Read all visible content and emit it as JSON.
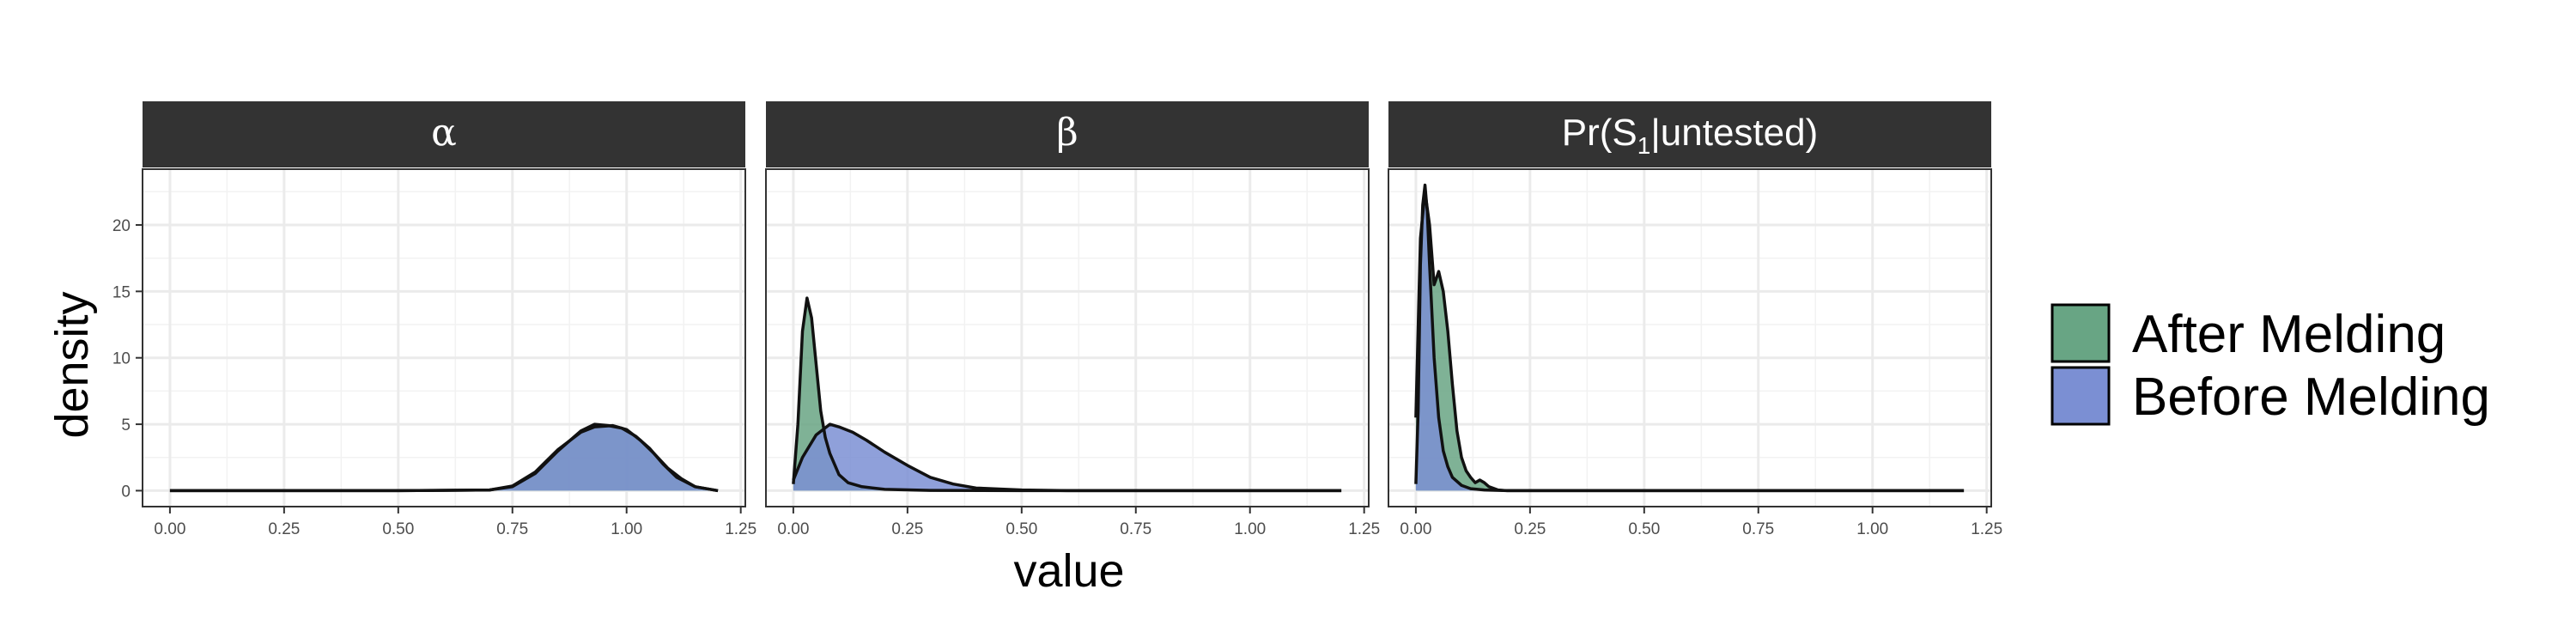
{
  "chart_data": {
    "type": "area",
    "xlabel": "value",
    "ylabel": "density",
    "xlim": [
      -0.06,
      1.26
    ],
    "ylim": [
      -1.2,
      24.2
    ],
    "x_ticks": [
      0,
      0.25,
      0.5,
      0.75,
      1.0,
      1.25
    ],
    "x_tick_labels": [
      "0.00",
      "0.25",
      "0.50",
      "0.75",
      "1.00",
      "1.25"
    ],
    "y_ticks": [
      0,
      5,
      10,
      15,
      20
    ],
    "y_tick_labels": [
      "0",
      "5",
      "10",
      "15",
      "20"
    ],
    "grid": true,
    "legend_position": "right",
    "legend": [
      {
        "label": "After Melding",
        "color": "#68a584"
      },
      {
        "label": "Before Melding",
        "color": "#7b8fd3"
      }
    ],
    "panels": [
      {
        "strip": "α",
        "series": [
          {
            "name": "After Melding",
            "color": "#68a584",
            "x": [
              0,
              0.5,
              0.7,
              0.75,
              0.8,
              0.85,
              0.9,
              0.93,
              0.96,
              0.99,
              1.02,
              1.05,
              1.08,
              1.11,
              1.15,
              1.2
            ],
            "y": [
              0,
              0,
              0.05,
              0.3,
              1.3,
              3.0,
              4.5,
              5.0,
              4.9,
              4.7,
              4.1,
              3.2,
              2.0,
              1.0,
              0.3,
              0
            ]
          },
          {
            "name": "Before Melding",
            "color": "#7b8fd3",
            "x": [
              0,
              0.5,
              0.7,
              0.75,
              0.8,
              0.85,
              0.9,
              0.93,
              0.97,
              1.0,
              1.03,
              1.06,
              1.09,
              1.12,
              1.15,
              1.2
            ],
            "y": [
              0,
              0,
              0.05,
              0.35,
              1.4,
              3.1,
              4.4,
              4.8,
              4.9,
              4.6,
              3.8,
              2.8,
              1.7,
              0.9,
              0.3,
              0
            ]
          }
        ]
      },
      {
        "strip": "β",
        "series": [
          {
            "name": "After Melding",
            "color": "#68a584",
            "x": [
              0,
              0.01,
              0.02,
              0.03,
              0.04,
              0.05,
              0.06,
              0.07,
              0.08,
              0.09,
              0.1,
              0.12,
              0.15,
              0.2,
              0.3,
              0.5,
              1.2
            ],
            "y": [
              0.5,
              5.0,
              12.0,
              14.5,
              13.0,
              9.5,
              6.0,
              4.0,
              2.8,
              2.0,
              1.2,
              0.6,
              0.3,
              0.1,
              0.02,
              0,
              0
            ]
          },
          {
            "name": "Before Melding",
            "color": "#7b8fd3",
            "x": [
              0,
              0.02,
              0.05,
              0.08,
              0.1,
              0.13,
              0.16,
              0.2,
              0.25,
              0.3,
              0.35,
              0.4,
              0.5,
              0.6,
              1.2
            ],
            "y": [
              0.8,
              2.5,
              4.2,
              5.0,
              4.8,
              4.4,
              3.8,
              2.9,
              1.9,
              1.0,
              0.5,
              0.2,
              0.05,
              0,
              0
            ]
          }
        ]
      },
      {
        "strip": "Pr(S1|untested)",
        "strip_main": "Pr",
        "strip_sub": "1",
        "strip_rest": "untested",
        "series": [
          {
            "name": "After Melding",
            "color": "#68a584",
            "x": [
              0,
              0.01,
              0.02,
              0.03,
              0.04,
              0.05,
              0.06,
              0.07,
              0.08,
              0.09,
              0.1,
              0.11,
              0.12,
              0.13,
              0.14,
              0.15,
              0.16,
              0.18,
              0.2,
              1.2
            ],
            "y": [
              5.5,
              19.0,
              22.5,
              20.0,
              15.5,
              16.5,
              15.0,
              12.0,
              8.0,
              4.5,
              2.5,
              1.5,
              1.0,
              0.6,
              0.8,
              0.6,
              0.3,
              0.05,
              0,
              0
            ]
          },
          {
            "name": "Before Melding",
            "color": "#7b8fd3",
            "x": [
              0,
              0.005,
              0.01,
              0.015,
              0.02,
              0.025,
              0.03,
              0.04,
              0.05,
              0.06,
              0.07,
              0.08,
              0.1,
              0.12,
              0.15,
              0.2,
              1.2
            ],
            "y": [
              0.5,
              6.0,
              17.0,
              21.5,
              23.0,
              21.0,
              17.0,
              10.0,
              5.5,
              3.0,
              1.8,
              1.0,
              0.4,
              0.15,
              0.05,
              0,
              0
            ]
          }
        ]
      }
    ]
  }
}
